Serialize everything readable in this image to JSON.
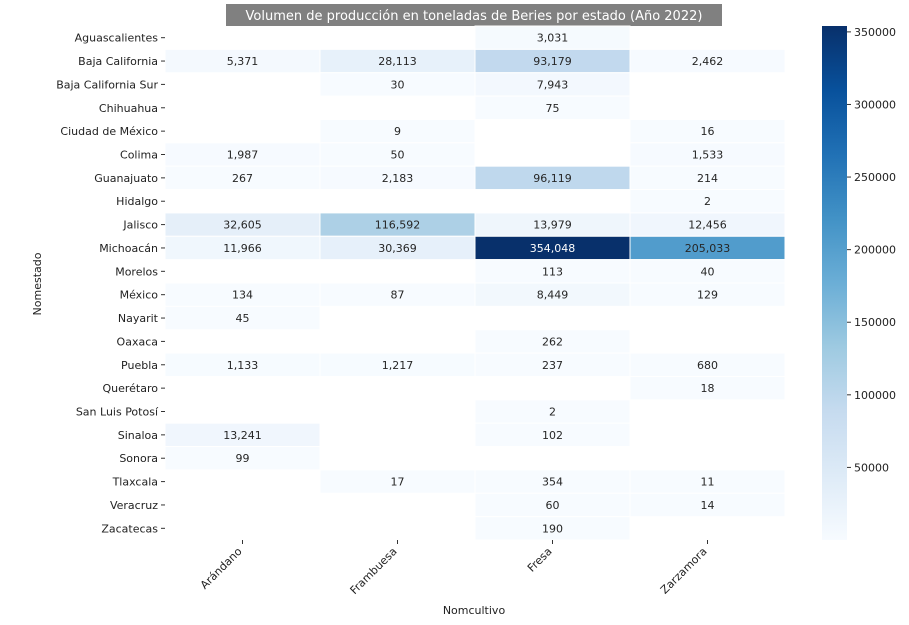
{
  "chart_data": {
    "type": "heatmap",
    "title": "Volumen de producción en toneladas de Beries por estado (Año 2022)",
    "xlabel": "Nomcultivo",
    "ylabel": "Nomestado",
    "x_categories": [
      "Arándano",
      "Frambuesa",
      "Fresa",
      "Zarzamora"
    ],
    "y_categories": [
      "Aguascalientes",
      "Baja California",
      "Baja California Sur",
      "Chihuahua",
      "Ciudad de México",
      "Colima",
      "Guanajuato",
      "Hidalgo",
      "Jalisco",
      "Michoacán",
      "Morelos",
      "México",
      "Nayarit",
      "Oaxaca",
      "Puebla",
      "Querétaro",
      "San Luis Potosí",
      "Sinaloa",
      "Sonora",
      "Tlaxcala",
      "Veracruz",
      "Zacatecas"
    ],
    "values": [
      [
        null,
        null,
        3031,
        null
      ],
      [
        5371,
        28113,
        93179,
        2462
      ],
      [
        null,
        30,
        7943,
        null
      ],
      [
        null,
        null,
        75,
        null
      ],
      [
        null,
        9,
        null,
        16
      ],
      [
        1987,
        50,
        null,
        1533
      ],
      [
        267,
        2183,
        96119,
        214
      ],
      [
        null,
        null,
        null,
        2
      ],
      [
        32605,
        116592,
        13979,
        12456
      ],
      [
        11966,
        30369,
        354048,
        205033
      ],
      [
        null,
        null,
        113,
        40
      ],
      [
        134,
        87,
        8449,
        129
      ],
      [
        45,
        null,
        null,
        null
      ],
      [
        null,
        null,
        262,
        null
      ],
      [
        1133,
        1217,
        237,
        680
      ],
      [
        null,
        null,
        null,
        18
      ],
      [
        null,
        null,
        2,
        null
      ],
      [
        13241,
        null,
        102,
        null
      ],
      [
        99,
        null,
        null,
        null
      ],
      [
        null,
        17,
        354,
        11
      ],
      [
        null,
        null,
        60,
        14
      ],
      [
        null,
        null,
        190,
        null
      ]
    ],
    "value_labels": [
      [
        "",
        "",
        "3,031",
        ""
      ],
      [
        "5,371",
        "28,113",
        "93,179",
        "2,462"
      ],
      [
        "",
        "30",
        "7,943",
        ""
      ],
      [
        "",
        "",
        "75",
        ""
      ],
      [
        "",
        "9",
        "",
        "16"
      ],
      [
        "1,987",
        "50",
        "",
        "1,533"
      ],
      [
        "267",
        "2,183",
        "96,119",
        "214"
      ],
      [
        "",
        "",
        "",
        "2"
      ],
      [
        "32,605",
        "116,592",
        "13,979",
        "12,456"
      ],
      [
        "11,966",
        "30,369",
        "354,048",
        "205,033"
      ],
      [
        "",
        "",
        "113",
        "40"
      ],
      [
        "134",
        "87",
        "8,449",
        "129"
      ],
      [
        "45",
        "",
        "",
        ""
      ],
      [
        "",
        "",
        "262",
        ""
      ],
      [
        "1,133",
        "1,217",
        "237",
        "680"
      ],
      [
        "",
        "",
        "",
        "18"
      ],
      [
        "",
        "",
        "2",
        ""
      ],
      [
        "13,241",
        "",
        "102",
        ""
      ],
      [
        "99",
        "",
        "",
        ""
      ],
      [
        "",
        "17",
        "354",
        "11"
      ],
      [
        "",
        "",
        "60",
        "14"
      ],
      [
        "",
        "",
        "190",
        ""
      ]
    ],
    "color_range": [
      2,
      354048
    ],
    "colorbar_ticks": [
      "50000",
      "100000",
      "150000",
      "200000",
      "250000",
      "300000",
      "350000"
    ],
    "colorbar_tick_values": [
      50000,
      100000,
      150000,
      200000,
      250000,
      300000,
      350000
    ],
    "colormap": "Blues",
    "cell_colors": {
      "low": "#f7fbff",
      "high": "#08306b"
    },
    "title_background": "#808080",
    "title_color": "#ffffff"
  }
}
